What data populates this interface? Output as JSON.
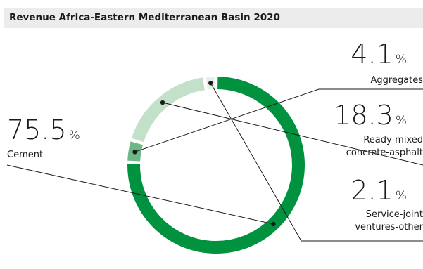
{
  "chart_data": {
    "type": "pie",
    "title": "Revenue Africa-Eastern Mediterranean Basin 2020",
    "unit": "%",
    "series": [
      {
        "name": "Cement",
        "value": 75.5,
        "value_label": "75.5",
        "label_lines": [
          "Cement"
        ],
        "color": "#00923f"
      },
      {
        "name": "Aggregates",
        "value": 4.1,
        "value_label": "4.1",
        "label_lines": [
          "Aggregates"
        ],
        "color": "#6db686"
      },
      {
        "name": "Ready-mixed concrete-asphalt",
        "value": 18.3,
        "value_label": "18.3",
        "label_lines": [
          "Ready-mixed",
          "concrete-asphalt"
        ],
        "color": "#c3e0c8"
      },
      {
        "name": "Service-joint ventures-other",
        "value": 2.1,
        "value_label": "2.1",
        "label_lines": [
          "Service-joint",
          "ventures-other"
        ],
        "color": "#e4f1e6"
      }
    ]
  }
}
